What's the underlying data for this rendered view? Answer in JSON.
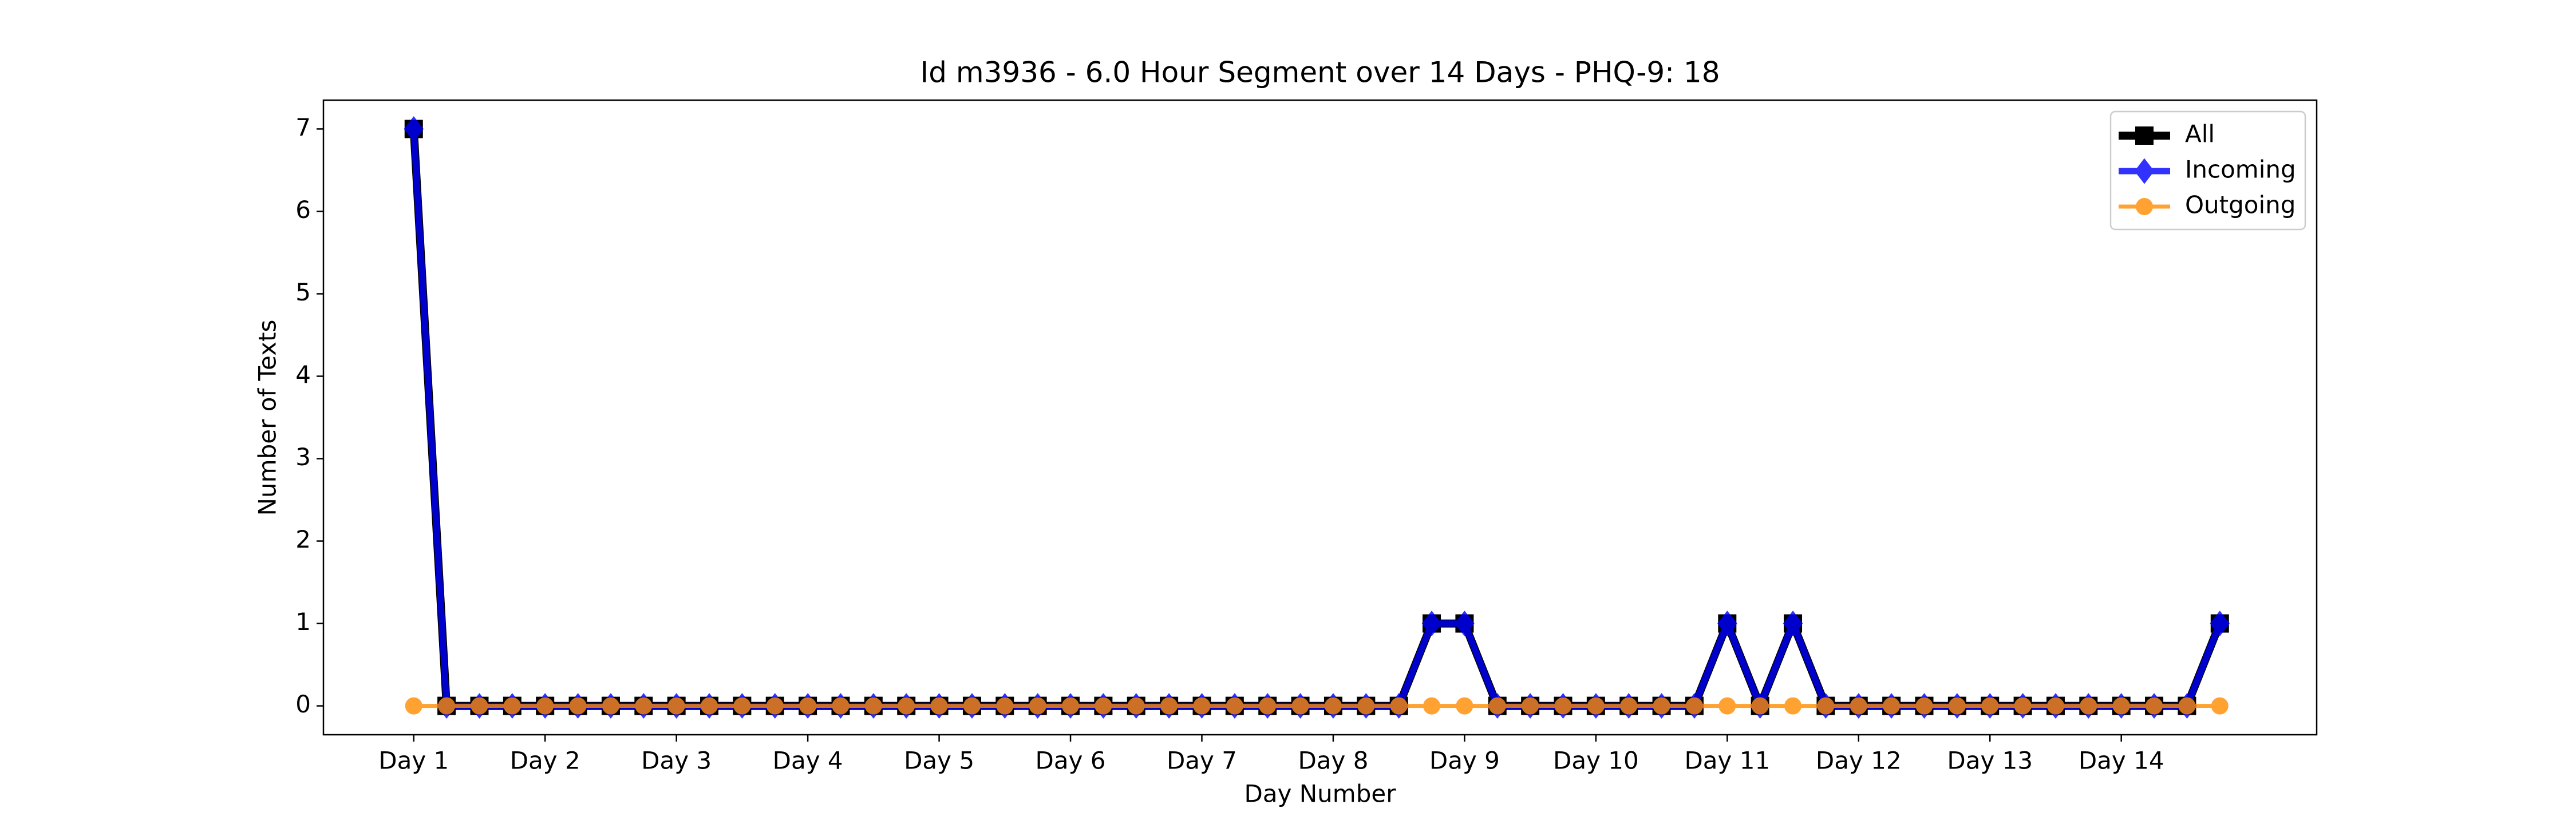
{
  "chart_data": {
    "type": "line",
    "title": "Id m3936 - 6.0 Hour Segment over 14 Days - PHQ-9: 18",
    "x_label": "Day Number",
    "y_label": "Number of Texts",
    "x": [
      0,
      1,
      2,
      3,
      4,
      5,
      6,
      7,
      8,
      9,
      10,
      11,
      12,
      13,
      14,
      15,
      16,
      17,
      18,
      19,
      20,
      21,
      22,
      23,
      24,
      25,
      26,
      27,
      28,
      29,
      30,
      31,
      32,
      33,
      34,
      35,
      36,
      37,
      38,
      39,
      40,
      41,
      42,
      43,
      44,
      45,
      46,
      47,
      48,
      49,
      50,
      51,
      52,
      53,
      54,
      55
    ],
    "series": [
      {
        "name": "All",
        "color": "#000000",
        "marker": "square",
        "values": [
          7,
          0,
          0,
          0,
          0,
          0,
          0,
          0,
          0,
          0,
          0,
          0,
          0,
          0,
          0,
          0,
          0,
          0,
          0,
          0,
          0,
          0,
          0,
          0,
          0,
          0,
          0,
          0,
          0,
          0,
          0,
          1,
          1,
          0,
          0,
          0,
          0,
          0,
          0,
          0,
          1,
          0,
          1,
          0,
          0,
          0,
          0,
          0,
          0,
          0,
          0,
          0,
          0,
          0,
          0,
          1
        ]
      },
      {
        "name": "Incoming",
        "color": "#0000ff",
        "marker": "diamond",
        "values": [
          7,
          0,
          0,
          0,
          0,
          0,
          0,
          0,
          0,
          0,
          0,
          0,
          0,
          0,
          0,
          0,
          0,
          0,
          0,
          0,
          0,
          0,
          0,
          0,
          0,
          0,
          0,
          0,
          0,
          0,
          0,
          1,
          1,
          0,
          0,
          0,
          0,
          0,
          0,
          0,
          1,
          0,
          1,
          0,
          0,
          0,
          0,
          0,
          0,
          0,
          0,
          0,
          0,
          0,
          0,
          1
        ]
      },
      {
        "name": "Outgoing",
        "color": "#ff8c00",
        "marker": "circle",
        "values": [
          0,
          0,
          0,
          0,
          0,
          0,
          0,
          0,
          0,
          0,
          0,
          0,
          0,
          0,
          0,
          0,
          0,
          0,
          0,
          0,
          0,
          0,
          0,
          0,
          0,
          0,
          0,
          0,
          0,
          0,
          0,
          0,
          0,
          0,
          0,
          0,
          0,
          0,
          0,
          0,
          0,
          0,
          0,
          0,
          0,
          0,
          0,
          0,
          0,
          0,
          0,
          0,
          0,
          0,
          0,
          0
        ]
      }
    ],
    "xlim": [
      -2.75,
      57.95
    ],
    "xticks": [
      {
        "value": 0,
        "label": "Day 1"
      },
      {
        "value": 4,
        "label": "Day 2"
      },
      {
        "value": 8,
        "label": "Day 3"
      },
      {
        "value": 12,
        "label": "Day 4"
      },
      {
        "value": 16,
        "label": "Day 5"
      },
      {
        "value": 20,
        "label": "Day 6"
      },
      {
        "value": 24,
        "label": "Day 7"
      },
      {
        "value": 28,
        "label": "Day 8"
      },
      {
        "value": 32,
        "label": "Day 9"
      },
      {
        "value": 36,
        "label": "Day 10"
      },
      {
        "value": 40,
        "label": "Day 11"
      },
      {
        "value": 44,
        "label": "Day 12"
      },
      {
        "value": 48,
        "label": "Day 13"
      },
      {
        "value": 52,
        "label": "Day 14"
      }
    ],
    "ylim": [
      -0.35,
      7.35
    ],
    "yticks": [
      0,
      1,
      2,
      3,
      4,
      5,
      6,
      7
    ],
    "legend": "upper right"
  }
}
